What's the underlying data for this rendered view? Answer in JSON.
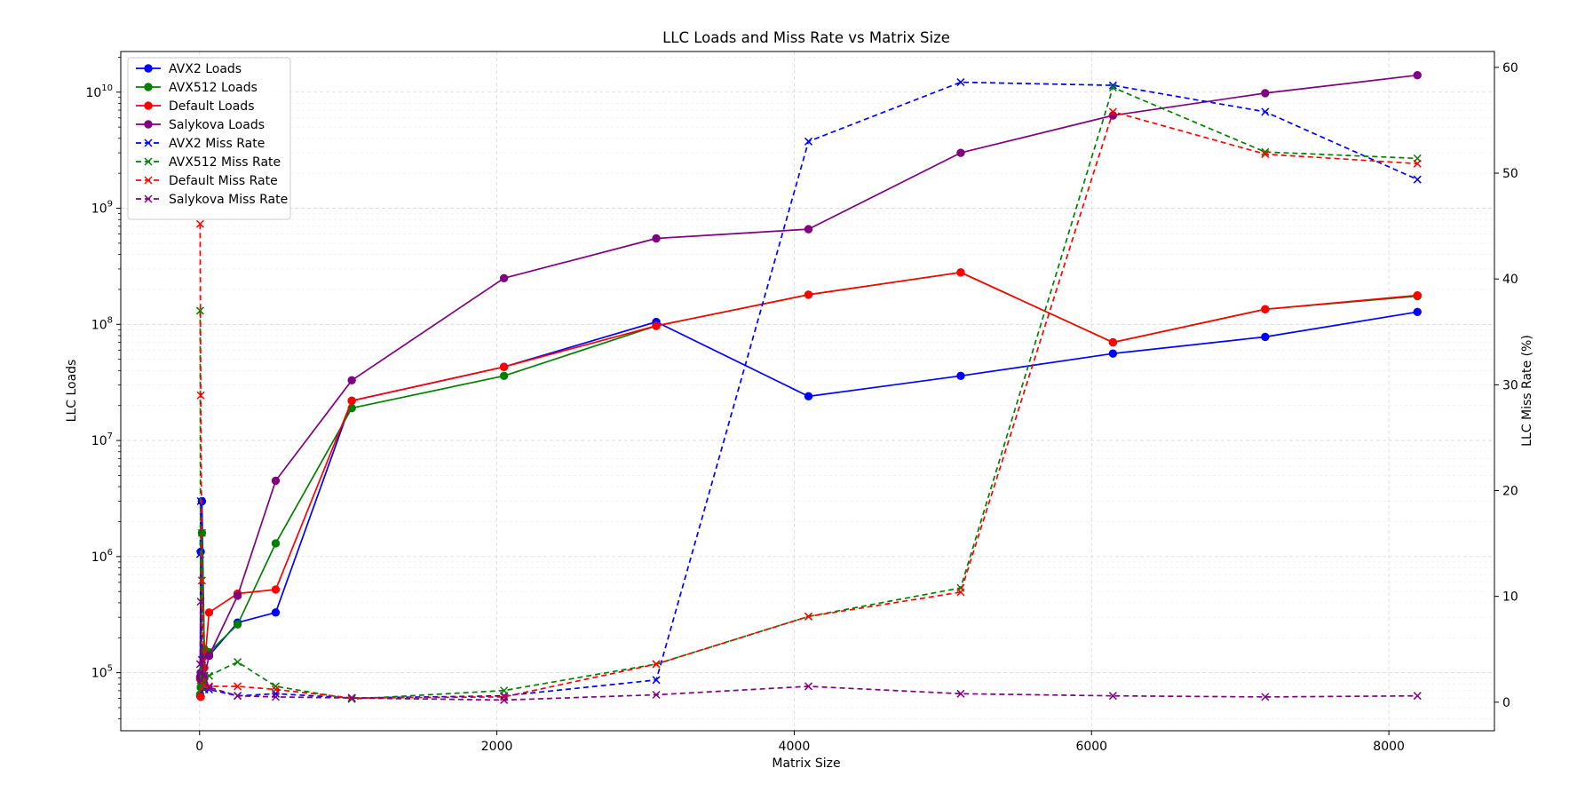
{
  "chart_data": {
    "type": "line",
    "title": "LLC Loads and Miss Rate vs Matrix Size",
    "xlabel": "Matrix Size",
    "ylabel_left": "LLC Loads",
    "ylabel_right": "LLC Miss Rate (%)",
    "xlim": [
      -530,
      8710
    ],
    "ylim_left_log10": [
      4.5,
      10.35
    ],
    "yscale_left": "log",
    "ylim_right": [
      -2.7,
      61.5
    ],
    "x_ticks": [
      0,
      2000,
      4000,
      6000,
      8000
    ],
    "x_tick_labels": [
      "0",
      "2000",
      "4000",
      "6000",
      "8000"
    ],
    "left_tick_exponents": [
      5,
      6,
      7,
      8,
      9,
      10
    ],
    "left_tick_base": "10",
    "right_ticks": [
      0,
      10,
      20,
      30,
      40,
      50,
      60
    ],
    "right_tick_labels": [
      "0",
      "10",
      "20",
      "30",
      "40",
      "50",
      "60"
    ],
    "grid": true,
    "legend_position": "top-left",
    "series": [
      {
        "name": "AVX2 Loads",
        "axis": "left",
        "color": "#0000ff",
        "style": "solid",
        "marker": "o",
        "x": [
          4,
          8,
          16,
          32,
          64,
          256,
          512,
          1024,
          2048,
          3072,
          4096,
          5120,
          6144,
          7168,
          8192
        ],
        "y": [
          63000,
          1100000,
          3000000,
          140000,
          140000,
          270000,
          330000,
          22000000,
          43000000,
          105000000,
          24000000,
          36000000,
          56000000,
          78000000,
          128000000
        ]
      },
      {
        "name": "AVX512 Loads",
        "axis": "left",
        "color": "#008000",
        "style": "solid",
        "marker": "o",
        "x": [
          4,
          8,
          16,
          32,
          64,
          256,
          512,
          1024,
          2048,
          3072,
          4096,
          5120,
          6144,
          7168,
          8192
        ],
        "y": [
          65000,
          75000,
          1600000,
          160000,
          150000,
          260000,
          1300000,
          19000000,
          36000000,
          97000000,
          180000000,
          280000000,
          70000000,
          135000000,
          175000000
        ]
      },
      {
        "name": "Default Loads",
        "axis": "left",
        "color": "#ff0000",
        "style": "solid",
        "marker": "o",
        "x": [
          4,
          8,
          16,
          32,
          64,
          256,
          512,
          1024,
          2048,
          3072,
          4096,
          5120,
          6144,
          7168,
          8192
        ],
        "y": [
          88000,
          62000,
          95000,
          110000,
          330000,
          480000,
          520000,
          22000000,
          43000000,
          97000000,
          180000000,
          280000000,
          70000000,
          135000000,
          178000000
        ]
      },
      {
        "name": "Salykova Loads",
        "axis": "left",
        "color": "#800080",
        "style": "solid",
        "marker": "o",
        "x": [
          4,
          8,
          16,
          32,
          64,
          256,
          512,
          1024,
          2048,
          3072,
          4096,
          5120,
          6144,
          7168,
          8192
        ],
        "y": [
          92000,
          100000,
          85000,
          90000,
          140000,
          460000,
          4500000,
          33000000,
          250000000,
          550000000,
          660000000,
          3000000000,
          6300000000,
          9800000000,
          14000000000
        ]
      },
      {
        "name": "AVX2 Miss Rate",
        "axis": "right",
        "color": "#0000ff",
        "style": "dashed",
        "marker": "x",
        "x": [
          4,
          8,
          16,
          32,
          64,
          256,
          512,
          1024,
          2048,
          3072,
          4096,
          5120,
          6144,
          7168,
          8192
        ],
        "y": [
          14,
          19,
          4,
          1.2,
          1.2,
          0.6,
          0.8,
          0.4,
          0.6,
          2.1,
          53,
          58.6,
          58.3,
          55.8,
          49.4
        ]
      },
      {
        "name": "AVX512 Miss Rate",
        "axis": "right",
        "color": "#008000",
        "style": "dashed",
        "marker": "x",
        "x": [
          4,
          8,
          16,
          32,
          64,
          256,
          512,
          1024,
          2048,
          3072,
          4096,
          5120,
          6144,
          7168,
          8192
        ],
        "y": [
          37,
          1.5,
          16,
          2,
          2.5,
          3.8,
          1.5,
          0.3,
          1.1,
          3.6,
          8.1,
          10.8,
          58.1,
          52,
          51.4
        ]
      },
      {
        "name": "Default Miss Rate",
        "axis": "right",
        "color": "#ff0000",
        "style": "dashed",
        "marker": "x",
        "x": [
          4,
          8,
          16,
          32,
          64,
          256,
          512,
          1024,
          2048,
          3072,
          4096,
          5120,
          6144,
          7168,
          8192
        ],
        "y": [
          45.2,
          29,
          11.5,
          1.6,
          1.5,
          1.5,
          1.2,
          0.4,
          0.5,
          3.6,
          8.1,
          10.4,
          55.8,
          51.8,
          50.9
        ]
      },
      {
        "name": "Salykova Miss Rate",
        "axis": "right",
        "color": "#800080",
        "style": "dashed",
        "marker": "x",
        "x": [
          4,
          8,
          16,
          32,
          64,
          256,
          512,
          1024,
          2048,
          3072,
          4096,
          5120,
          6144,
          7168,
          8192
        ],
        "y": [
          3.6,
          9.5,
          4,
          2.5,
          1.4,
          0.6,
          0.5,
          0.4,
          0.2,
          0.7,
          1.5,
          0.8,
          0.6,
          0.5,
          0.6
        ]
      }
    ]
  }
}
